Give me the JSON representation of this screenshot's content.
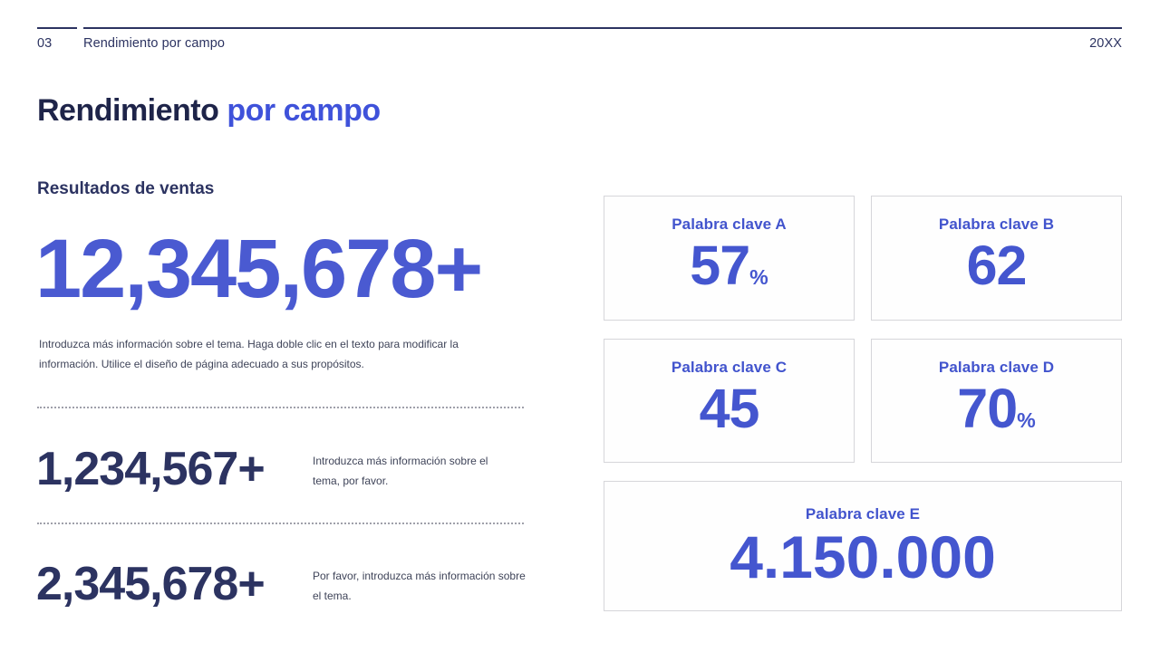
{
  "header": {
    "page_number": "03",
    "section_title": "Rendimiento por campo",
    "year": "20XX"
  },
  "title": {
    "primary": "Rendimiento",
    "accent": " por campo"
  },
  "sales": {
    "heading": "Resultados de ventas",
    "hero_value": "12,345,678+",
    "hero_description": "Introduzca más información sobre el tema. Haga doble clic en el texto para modificar la\ninformación. Utilice el diseño de página adecuado a sus propósitos.",
    "stats": [
      {
        "value": "1,234,567+",
        "description": "Introduzca más información sobre el\ntema, por favor."
      },
      {
        "value": "2,345,678+",
        "description": "Por favor, introduzca más información sobre\nel tema."
      }
    ]
  },
  "cards": [
    {
      "label": "Palabra clave A",
      "value": "57",
      "suffix": "%"
    },
    {
      "label": "Palabra clave B",
      "value": "62",
      "suffix": ""
    },
    {
      "label": "Palabra clave C",
      "value": "45",
      "suffix": ""
    },
    {
      "label": "Palabra clave D",
      "value": "70",
      "suffix": "%"
    },
    {
      "label": "Palabra clave E",
      "value": "4.150.000",
      "suffix": ""
    }
  ],
  "colors": {
    "accent_blue": "#4456cf",
    "title_blue": "#3f52da",
    "navy": "#2c3361",
    "muted_text": "#3f4459",
    "card_border": "#d6d6da",
    "divider": "#9fa0aa"
  }
}
